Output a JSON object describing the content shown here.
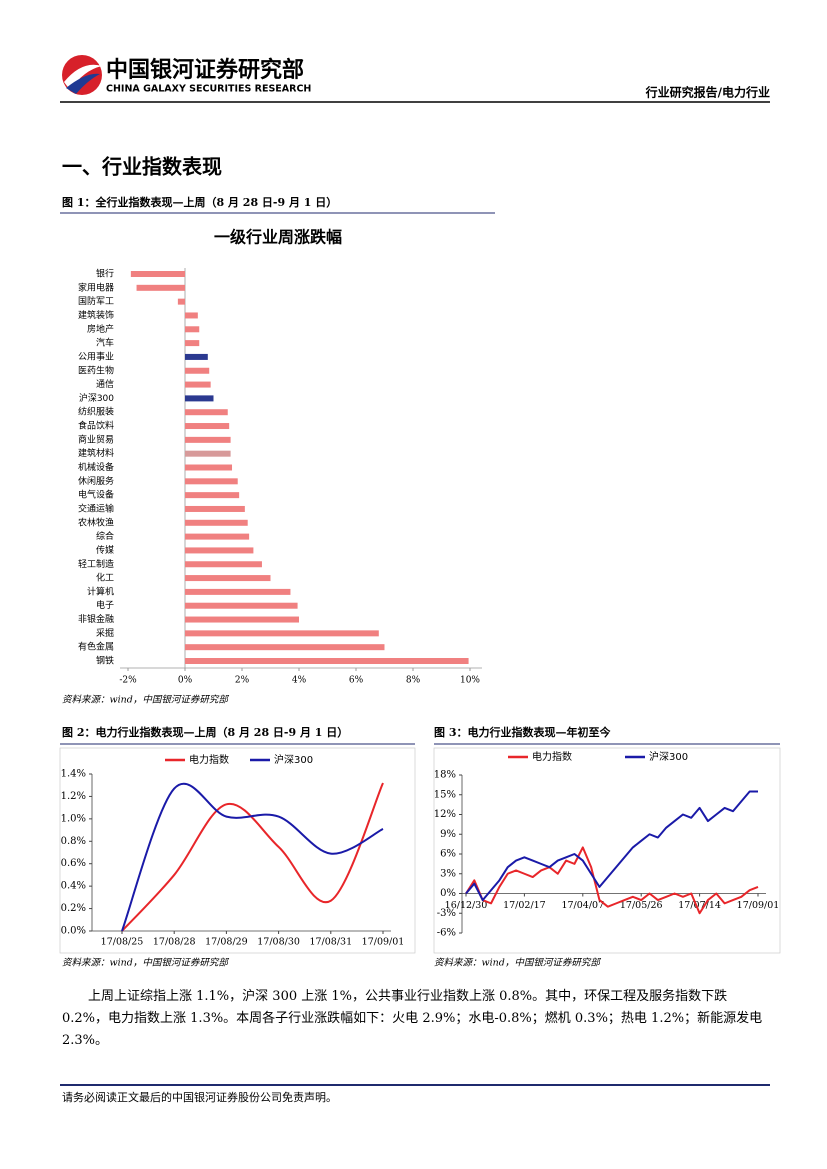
{
  "header": {
    "company": "中国银河证券研究部",
    "company_en": "CHINA GALAXY SECURITIES RESEARCH",
    "report_type": "行业研究报告/电力行业"
  },
  "section_title": "一、行业指数表现",
  "figures": [
    {
      "caption": "图 1：全行业指数表现—上周（8 月 28 日-9 月 1 日）",
      "source": "资料来源：wind，中国银河证券研究部"
    },
    {
      "caption": "图 2：电力行业指数表现—上周（8 月 28 日-9 月 1 日）",
      "source": "资料来源：wind，中国银河证券研究部"
    },
    {
      "caption": "图 3：电力行业指数表现—年初至今",
      "source": "资料来源：wind，中国银河证券研究部"
    }
  ],
  "chart_data": [
    {
      "type": "hbar",
      "title": "一级行业周涨跌幅",
      "categories": [
        "银行",
        "家用电器",
        "国防军工",
        "建筑装饰",
        "房地产",
        "汽车",
        "公用事业",
        "医药生物",
        "通信",
        "沪深300",
        "纺织服装",
        "食品饮料",
        "商业贸易",
        "建筑材料",
        "机械设备",
        "休闲服务",
        "电气设备",
        "交通运输",
        "农林牧渔",
        "综合",
        "传媒",
        "轻工制造",
        "化工",
        "计算机",
        "电子",
        "非银金融",
        "采掘",
        "有色金属",
        "钢铁"
      ],
      "values": [
        -1.9,
        -1.7,
        -0.25,
        0.45,
        0.5,
        0.5,
        0.8,
        0.85,
        0.9,
        1.0,
        1.5,
        1.55,
        1.6,
        1.6,
        1.65,
        1.85,
        1.9,
        2.1,
        2.2,
        2.25,
        2.4,
        2.7,
        3.0,
        3.7,
        3.95,
        4.0,
        6.8,
        7.0,
        9.95
      ],
      "colors": [
        "#f08080",
        "#f08080",
        "#f08080",
        "#f08080",
        "#f08080",
        "#f08080",
        "#2b3990",
        "#f08080",
        "#f08080",
        "#2b3990",
        "#f08080",
        "#f08080",
        "#f08080",
        "#d79a9a",
        "#f08080",
        "#f08080",
        "#f08080",
        "#f08080",
        "#f08080",
        "#f08080",
        "#f08080",
        "#f08080",
        "#f08080",
        "#f08080",
        "#f08080",
        "#f08080",
        "#f08080",
        "#f08080",
        "#f08080"
      ],
      "xlim": [
        -2,
        10
      ],
      "xticks": [
        {
          "value": -2,
          "label": "-2%"
        },
        {
          "value": 0,
          "label": "0%"
        },
        {
          "value": 2,
          "label": "2%"
        },
        {
          "value": 4,
          "label": "4%"
        },
        {
          "value": 6,
          "label": "6%"
        },
        {
          "value": 8,
          "label": "8%"
        },
        {
          "value": 10,
          "label": "10%"
        }
      ]
    },
    {
      "type": "line",
      "smooth": true,
      "categories": [
        "17/08/25",
        "17/08/28",
        "17/08/29",
        "17/08/30",
        "17/08/31",
        "17/09/01"
      ],
      "series": [
        {
          "name": "电力指数",
          "color": "#e8262a",
          "values": [
            0,
            0.5,
            1.13,
            0.75,
            0.27,
            1.32
          ]
        },
        {
          "name": "沪深300",
          "color": "#1a1aa8",
          "values": [
            0,
            1.27,
            1.02,
            1.02,
            0.69,
            0.91
          ]
        }
      ],
      "ylim": [
        0,
        1.4
      ],
      "yticks": [
        {
          "value": 0,
          "label": "0.0%"
        },
        {
          "value": 0.2,
          "label": "0.2%"
        },
        {
          "value": 0.4,
          "label": "0.4%"
        },
        {
          "value": 0.6,
          "label": "0.6%"
        },
        {
          "value": 0.8,
          "label": "0.8%"
        },
        {
          "value": 1.0,
          "label": "1.0%"
        },
        {
          "value": 1.2,
          "label": "1.2%"
        },
        {
          "value": 1.4,
          "label": "1.4%"
        }
      ]
    },
    {
      "type": "line",
      "smooth": false,
      "categories": [
        "16/12/30",
        null,
        null,
        null,
        null,
        null,
        null,
        "17/02/17",
        null,
        null,
        null,
        null,
        null,
        null,
        "17/04/07",
        null,
        null,
        null,
        null,
        null,
        null,
        "17/05/26",
        null,
        null,
        null,
        null,
        null,
        null,
        "17/07/14",
        null,
        null,
        null,
        null,
        null,
        null,
        "17/09/01"
      ],
      "series": [
        {
          "name": "电力指数",
          "color": "#e8262a",
          "values": [
            0,
            2,
            -1,
            -1.5,
            1,
            3,
            3.5,
            3,
            2.5,
            3.5,
            4,
            3,
            5,
            4.5,
            7,
            4,
            -1,
            -2,
            -1.5,
            -1,
            -0.5,
            -1,
            0,
            -1,
            -0.5,
            0,
            -0.5,
            0,
            -3,
            -1,
            0,
            -1.5,
            -1,
            -0.5,
            0.5,
            1
          ]
        },
        {
          "name": "沪深300",
          "color": "#1a1aa8",
          "values": [
            0,
            1.5,
            -1,
            0.5,
            2,
            4,
            5,
            5.5,
            5,
            4.5,
            4,
            5,
            5.5,
            6,
            5,
            3,
            1,
            2.5,
            4,
            5.5,
            7,
            8,
            9,
            8.5,
            10,
            11,
            12,
            11.5,
            13,
            11,
            12,
            13,
            12.5,
            14,
            15.5,
            15.5
          ]
        }
      ],
      "ylim": [
        -6,
        18
      ],
      "yticks": [
        {
          "value": -6,
          "label": "-6%"
        },
        {
          "value": -3,
          "label": "-3%"
        },
        {
          "value": 0,
          "label": "0%"
        },
        {
          "value": 3,
          "label": "3%"
        },
        {
          "value": 6,
          "label": "6%"
        },
        {
          "value": 9,
          "label": "9%"
        },
        {
          "value": 12,
          "label": "12%"
        },
        {
          "value": 15,
          "label": "15%"
        },
        {
          "value": 18,
          "label": "18%"
        }
      ]
    }
  ],
  "body": "上周上证综指上涨 1.1%，沪深 300 上涨 1%，公共事业行业指数上涨 0.8%。其中，环保工程及服务指数下跌 0.2%，电力指数上涨 1.3%。本周各子行业涨跌幅如下：火电 2.9%；水电-0.8%；燃机 0.3%；热电 1.2%；新能源发电 2.3%。",
  "footer": "请务必阅读正文最后的中国银河证券股份公司免责声明。"
}
